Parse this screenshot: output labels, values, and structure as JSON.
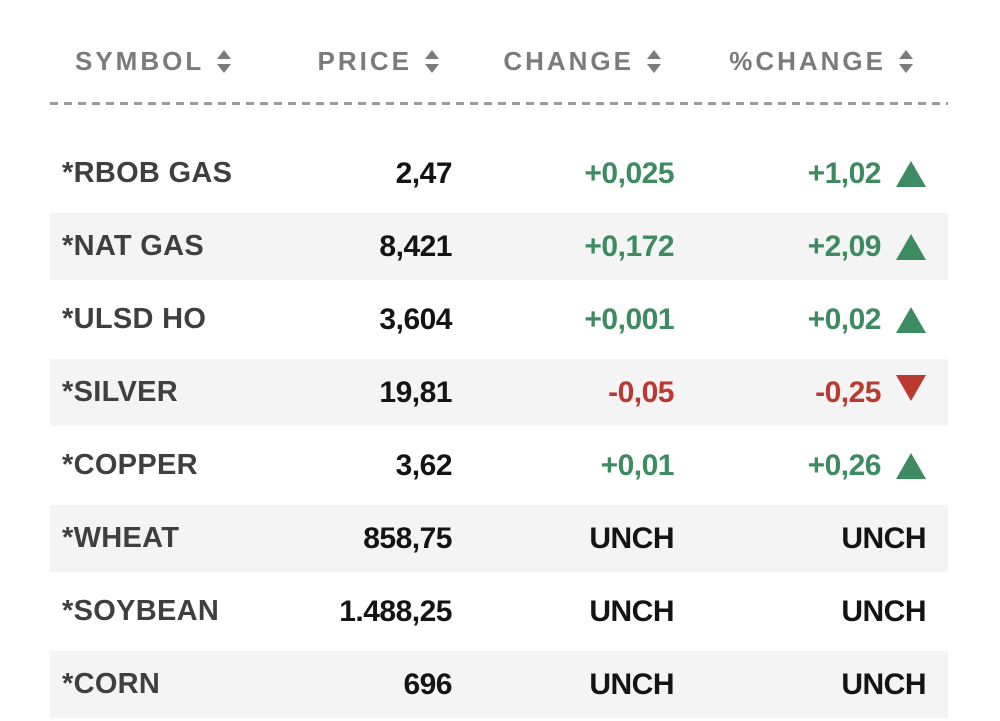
{
  "header": {
    "columns": [
      {
        "label": "SYMBOL"
      },
      {
        "label": "PRICE"
      },
      {
        "label": "CHANGE"
      },
      {
        "label": "%CHANGE"
      }
    ],
    "sort_icon": "sort-arrows"
  },
  "table": {
    "rows": [
      {
        "symbol": "*RBOB GAS",
        "price": "2,47",
        "change": "+0,025",
        "pct_change": "+1,02",
        "direction": "up"
      },
      {
        "symbol": "*NAT GAS",
        "price": "8,421",
        "change": "+0,172",
        "pct_change": "+2,09",
        "direction": "up"
      },
      {
        "symbol": "*ULSD HO",
        "price": "3,604",
        "change": "+0,001",
        "pct_change": "+0,02",
        "direction": "up"
      },
      {
        "symbol": "*SILVER",
        "price": "19,81",
        "change": "-0,05",
        "pct_change": "-0,25",
        "direction": "down"
      },
      {
        "symbol": "*COPPER",
        "price": "3,62",
        "change": "+0,01",
        "pct_change": "+0,26",
        "direction": "up"
      },
      {
        "symbol": "*WHEAT",
        "price": "858,75",
        "change": "UNCH",
        "pct_change": "UNCH",
        "direction": "unch"
      },
      {
        "symbol": "*SOYBEAN",
        "price": "1.488,25",
        "change": "UNCH",
        "pct_change": "UNCH",
        "direction": "unch"
      },
      {
        "symbol": "*CORN",
        "price": "696",
        "change": "UNCH",
        "pct_change": "UNCH",
        "direction": "unch"
      }
    ]
  },
  "colors": {
    "up": "#3e8b62",
    "down": "#ba3a31",
    "header_text": "#7b7b7b",
    "symbol_text": "#3f3f3f",
    "value_text": "#141414",
    "row_alt_bg": "#f4f4f4",
    "divider": "#9b9b9b"
  }
}
